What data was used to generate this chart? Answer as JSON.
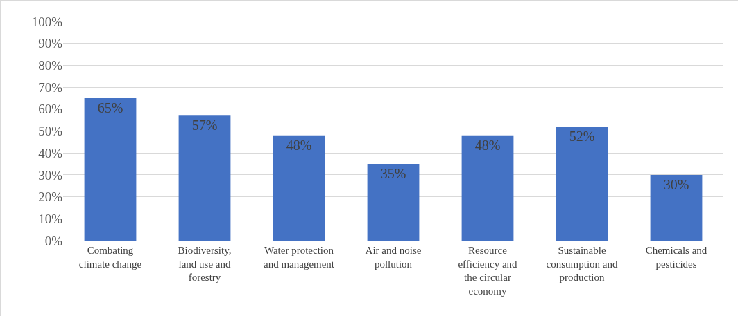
{
  "chart_data": {
    "type": "bar",
    "categories": [
      "Combating climate change",
      "Biodiversity, land use and forestry",
      "Water protection and management",
      "Air and noise pollution",
      "Resource efficiency and the circular economy",
      "Sustainable consumption and production",
      "Chemicals and pesticides"
    ],
    "values": [
      65,
      57,
      48,
      35,
      48,
      52,
      30
    ],
    "value_labels": [
      "65%",
      "57%",
      "48%",
      "35%",
      "48%",
      "52%",
      "30%"
    ],
    "color": "#4472c4",
    "ylim": [
      0,
      100
    ],
    "yticks": [
      {
        "value": 0,
        "label": "0%"
      },
      {
        "value": 10,
        "label": "10%"
      },
      {
        "value": 20,
        "label": "20%"
      },
      {
        "value": 30,
        "label": "30%"
      },
      {
        "value": 40,
        "label": "40%"
      },
      {
        "value": 50,
        "label": "50%"
      },
      {
        "value": 60,
        "label": "60%"
      },
      {
        "value": 70,
        "label": "70%"
      },
      {
        "value": 80,
        "label": "80%"
      },
      {
        "value": 90,
        "label": "90%"
      },
      {
        "value": 100,
        "label": "100%"
      }
    ],
    "grid": "y"
  }
}
